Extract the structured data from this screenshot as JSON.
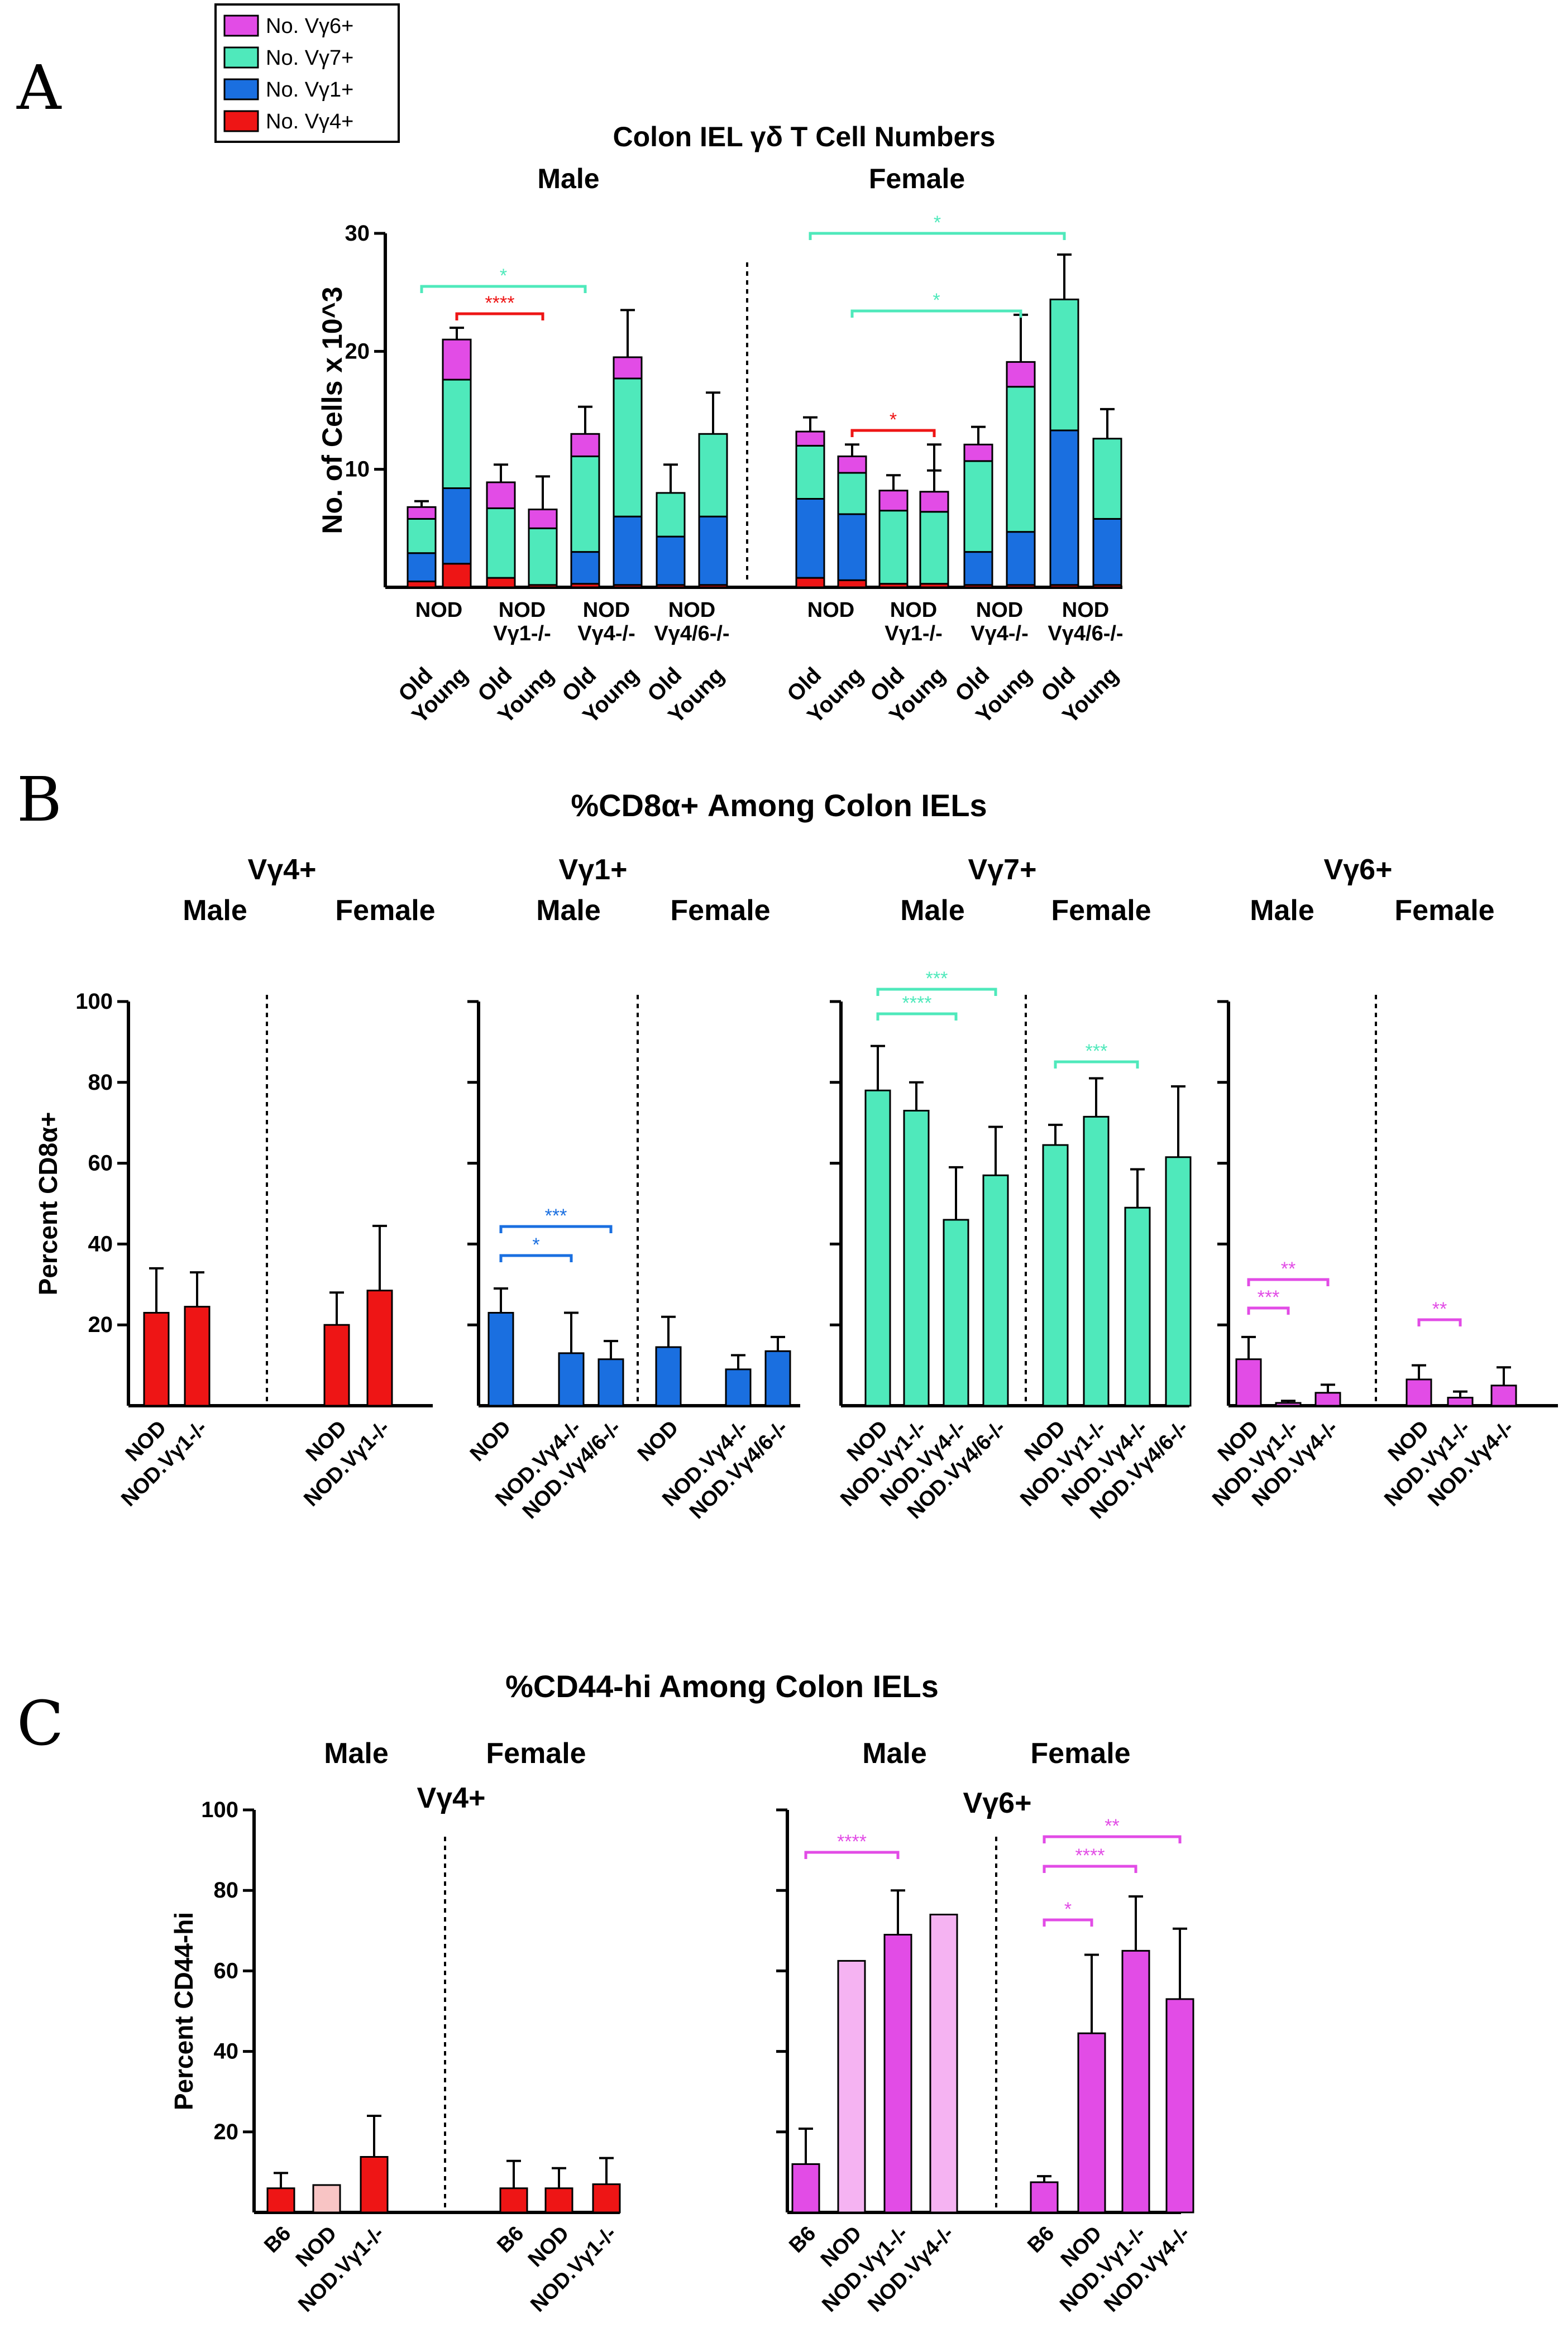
{
  "figure_letters": [
    "A",
    "B",
    "C"
  ],
  "colors": {
    "vg6": "#e24ce6",
    "vg7": "#4fe9bb",
    "vg1": "#1a6fe0",
    "vg4": "#ee1515",
    "vg4_light": "#f8c4c4",
    "vg6_light": "#f5b3f2",
    "axis": "#000000"
  },
  "legend": [
    {
      "label": "No. Vγ6+",
      "key": "vg6"
    },
    {
      "label": "No. Vγ7+",
      "key": "vg7"
    },
    {
      "label": "No. Vγ1+",
      "key": "vg1"
    },
    {
      "label": "No. Vγ4+",
      "key": "vg4"
    }
  ],
  "chart_data": [
    {
      "id": "A",
      "type": "bar",
      "stacked": true,
      "title": "Colon IEL γδ T Cell Numbers",
      "ylabel": "No. of Cells x 10^3",
      "ylim": [
        0,
        30
      ],
      "yticks": [
        10,
        20,
        30
      ],
      "sex_labels": [
        "Male",
        "Female"
      ],
      "strain_labels": [
        {
          "lines": [
            "NOD"
          ]
        },
        {
          "lines": [
            "NOD",
            "Vγ1-/-"
          ]
        },
        {
          "lines": [
            "NOD",
            "Vγ4-/-"
          ]
        },
        {
          "lines": [
            "NOD",
            "Vγ4/6-/-"
          ]
        },
        {
          "lines": [
            "NOD"
          ]
        },
        {
          "lines": [
            "NOD",
            "Vγ1-/-"
          ]
        },
        {
          "lines": [
            "NOD",
            "Vγ4-/-"
          ]
        },
        {
          "lines": [
            "NOD",
            "Vγ4/6-/-"
          ]
        }
      ],
      "categories": [
        "Old",
        "Young",
        "Old",
        "Young",
        "Old",
        "Young",
        "Old",
        "Young",
        "Old",
        "Young",
        "Old",
        "Young",
        "Old",
        "Young",
        "Old",
        "Young"
      ],
      "series": [
        {
          "name": "No. Vγ4+",
          "key": "vg4",
          "values": [
            0.5,
            2,
            0.8,
            0.2,
            0.3,
            0.2,
            0.2,
            0.2,
            0.8,
            0.6,
            0.3,
            0.3,
            0.2,
            0.2,
            0.2,
            0.2
          ],
          "err": [
            0.3,
            0.6,
            0.4,
            0,
            0,
            0,
            0,
            0,
            0.4,
            0.6,
            0,
            0,
            0,
            0,
            0,
            0
          ]
        },
        {
          "name": "No. Vγ1+",
          "key": "vg1",
          "values": [
            2.4,
            6.4,
            0,
            0,
            2.7,
            5.8,
            4.1,
            5.8,
            6.7,
            5.6,
            0,
            0,
            2.8,
            4.5,
            13.1,
            5.6
          ],
          "err": [
            1,
            1.5,
            0,
            0,
            2,
            1.5,
            2.6,
            2.8,
            2,
            1.5,
            0,
            0,
            0.8,
            2.5,
            7.4,
            1.3
          ]
        },
        {
          "name": "No. Vγ7+",
          "key": "vg7",
          "values": [
            2.9,
            9.2,
            5.9,
            4.8,
            8.1,
            11.7,
            3.7,
            7,
            4.5,
            3.5,
            6.2,
            6.1,
            7.7,
            12.3,
            11.1,
            6.8
          ],
          "err": [
            0,
            0,
            0,
            0,
            0,
            0,
            2.4,
            3.5,
            0,
            0,
            1.5,
            3.5,
            0,
            0,
            3.8,
            2.5
          ]
        },
        {
          "name": "No. Vγ6+",
          "key": "vg6",
          "values": [
            1,
            3.4,
            2.2,
            1.6,
            1.9,
            1.8,
            0,
            0,
            1.2,
            1.4,
            1.7,
            1.7,
            1.4,
            2.1,
            0,
            0
          ],
          "err": [
            0.5,
            1,
            1.5,
            2.8,
            2.3,
            4,
            0,
            0,
            1.2,
            1,
            1.3,
            4,
            1.5,
            4,
            0,
            0
          ]
        }
      ],
      "significance": [
        {
          "from": 0,
          "to": 4,
          "label": "*",
          "key": "vg7"
        },
        {
          "from": 1,
          "to": 3,
          "label": "****",
          "key": "vg4"
        },
        {
          "from": 8,
          "to": 14,
          "label": "*",
          "key": "vg7"
        },
        {
          "from": 9,
          "to": 13,
          "label": "*",
          "key": "vg7"
        },
        {
          "from": 9,
          "to": 11,
          "label": "*",
          "key": "vg4"
        }
      ]
    },
    {
      "id": "B",
      "type": "bar",
      "title": "%CD8α+ Among Colon IELs",
      "ylabel": "Percent CD8α+",
      "ylim": [
        0,
        100
      ],
      "yticks": [
        20,
        40,
        60,
        80,
        100
      ],
      "panels": [
        {
          "subset": "Vγ4+",
          "key": "vg4",
          "groups": [
            {
              "sex": "Male",
              "categories": [
                "NOD",
                "NOD.Vγ1-/-"
              ],
              "values": [
                23,
                24.5
              ],
              "err": [
                11,
                8.5
              ]
            },
            {
              "sex": "Female",
              "categories": [
                "NOD",
                "NOD.Vγ1-/-"
              ],
              "values": [
                20,
                28.5
              ],
              "err": [
                8,
                16
              ]
            }
          ],
          "significance": []
        },
        {
          "subset": "Vγ1+",
          "key": "vg1",
          "groups": [
            {
              "sex": "Male",
              "categories": [
                "NOD",
                "NOD.Vγ4-/-",
                "NOD.Vγ4/6-/-"
              ],
              "values": [
                23,
                13,
                11.5
              ],
              "err": [
                6,
                10,
                4.5
              ]
            },
            {
              "sex": "Female",
              "categories": [
                "NOD",
                "NOD.Vγ4-/-",
                "NOD.Vγ4/6-/-"
              ],
              "values": [
                14.5,
                9,
                13.5
              ],
              "err": [
                7.5,
                3.5,
                3.5
              ]
            }
          ],
          "significance": [
            {
              "group": 0,
              "from": 0,
              "to": 2,
              "label": "***"
            },
            {
              "group": 0,
              "from": 0,
              "to": 1,
              "label": "*"
            }
          ]
        },
        {
          "subset": "Vγ7+",
          "key": "vg7",
          "groups": [
            {
              "sex": "Male",
              "categories": [
                "NOD",
                "NOD.Vγ1-/-",
                "NOD.Vγ4-/-",
                "NOD.Vγ4/6-/-"
              ],
              "values": [
                78,
                73,
                46,
                57
              ],
              "err": [
                11,
                7,
                13,
                12
              ]
            },
            {
              "sex": "Female",
              "categories": [
                "NOD",
                "NOD.Vγ1-/-",
                "NOD.Vγ4-/-",
                "NOD.Vγ4/6-/-"
              ],
              "values": [
                64.5,
                71.5,
                49,
                61.5
              ],
              "err": [
                5,
                9.5,
                9.5,
                17.5
              ]
            }
          ],
          "significance": [
            {
              "group": 0,
              "from": 0,
              "to": 3,
              "label": "***"
            },
            {
              "group": 0,
              "from": 0,
              "to": 2,
              "label": "****"
            },
            {
              "group": 1,
              "from": 0,
              "to": 2,
              "label": "***"
            }
          ]
        },
        {
          "subset": "Vγ6+",
          "key": "vg6",
          "groups": [
            {
              "sex": "Male",
              "categories": [
                "NOD",
                "NOD.Vγ1-/-",
                "NOD.Vγ4-/-"
              ],
              "values": [
                11.5,
                0.7,
                3.2
              ],
              "err": [
                5.5,
                0.5,
                2
              ]
            },
            {
              "sex": "Female",
              "categories": [
                "NOD",
                "NOD.Vγ1-/-",
                "NOD.Vγ4-/-"
              ],
              "values": [
                6.5,
                2,
                5
              ],
              "err": [
                3.5,
                1.5,
                4.5
              ]
            }
          ],
          "significance": [
            {
              "group": 0,
              "from": 0,
              "to": 2,
              "label": "**"
            },
            {
              "group": 0,
              "from": 0,
              "to": 1,
              "label": "***"
            },
            {
              "group": 1,
              "from": 0,
              "to": 1,
              "label": "**"
            }
          ]
        }
      ]
    },
    {
      "id": "C",
      "type": "bar",
      "title": "%CD44-hi Among Colon IELs",
      "ylabel": "Percent  CD44-hi",
      "ylim": [
        0,
        100
      ],
      "yticks": [
        20,
        40,
        60,
        80,
        100
      ],
      "panels": [
        {
          "subset": "Vγ4+",
          "key": "vg4",
          "groups": [
            {
              "sex": "Male",
              "categories": [
                "B6",
                "NOD",
                "NOD.Vγ1-/-"
              ],
              "values": [
                6,
                6.8,
                13.8
              ],
              "err": [
                3.8,
                0,
                10.2
              ],
              "fills": [
                "vg4",
                "vg4_light",
                "vg4"
              ]
            },
            {
              "sex": "Female",
              "categories": [
                "B6",
                "NOD",
                "NOD.Vγ1-/-"
              ],
              "values": [
                6,
                6,
                7
              ],
              "err": [
                6.8,
                5,
                6.5
              ],
              "fills": [
                "vg4",
                "vg4",
                "vg4"
              ]
            }
          ],
          "significance": []
        },
        {
          "subset": "Vγ6+",
          "key": "vg6",
          "groups": [
            {
              "sex": "Male",
              "categories": [
                "B6",
                "NOD",
                "NOD.Vγ1-/-",
                "NOD.Vγ4-/-"
              ],
              "values": [
                12,
                62.5,
                69,
                74
              ],
              "err": [
                8.8,
                0,
                11,
                0
              ],
              "fills": [
                "vg6",
                "vg6_light",
                "vg6",
                "vg6_light"
              ]
            },
            {
              "sex": "Female",
              "categories": [
                "B6",
                "NOD",
                "NOD.Vγ1-/-",
                "NOD.Vγ4-/-"
              ],
              "values": [
                7.5,
                44.5,
                65,
                53
              ],
              "err": [
                1.5,
                19.5,
                13.5,
                17.5
              ],
              "fills": [
                "vg6",
                "vg6",
                "vg6",
                "vg6"
              ]
            }
          ],
          "significance": [
            {
              "group": 0,
              "from": 0,
              "to": 2,
              "label": "****"
            },
            {
              "group": 1,
              "from": 0,
              "to": 3,
              "label": "**"
            },
            {
              "group": 1,
              "from": 0,
              "to": 2,
              "label": "****"
            },
            {
              "group": 1,
              "from": 0,
              "to": 1,
              "label": "*"
            }
          ]
        }
      ]
    }
  ]
}
